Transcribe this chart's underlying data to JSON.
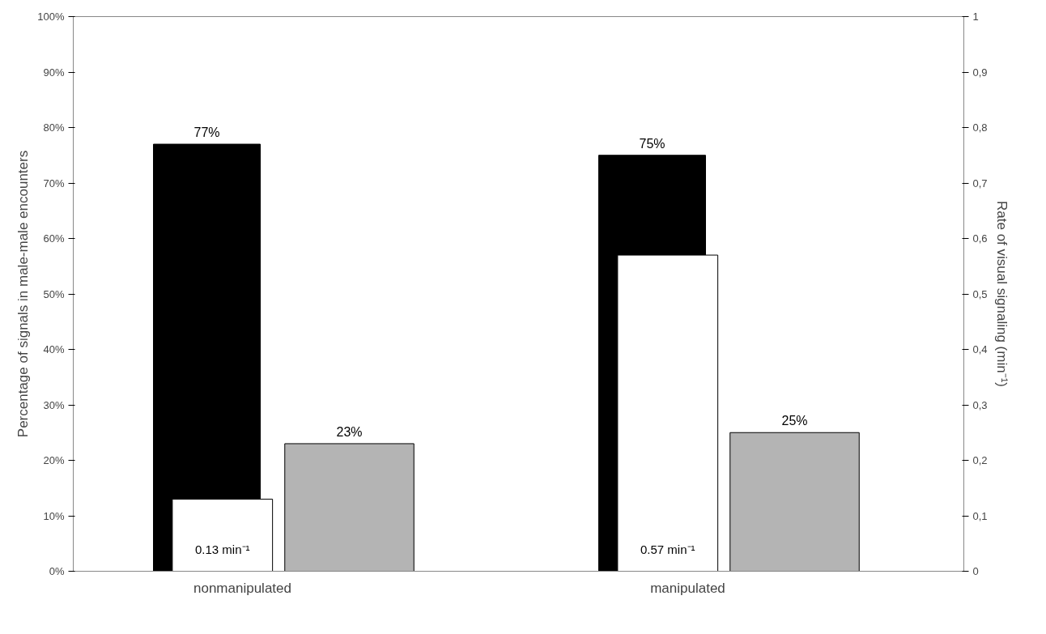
{
  "chart_data": {
    "type": "bar",
    "categories": [
      "nonmanipulated",
      "manipulated"
    ],
    "ylabel": "Percentage of signals in male-male encounters",
    "y2label": "Rate of visual signaling (min⁻¹)",
    "series": [
      {
        "color": "#000000",
        "values": [
          77,
          75
        ],
        "value_labels": [
          "77%",
          "75%"
        ]
      },
      {
        "color": "#ffffff",
        "values": [
          0.13,
          0.57
        ],
        "axis": "y2",
        "value_labels": [
          "0.13 min⁻¹",
          "0.57 min⁻¹"
        ]
      },
      {
        "color": "#b4b4b4",
        "values": [
          23,
          25
        ],
        "value_labels": [
          "23%",
          "25%"
        ]
      }
    ],
    "ylim": [
      0,
      100
    ],
    "yticks": [
      {
        "value": 0,
        "label": "0%"
      },
      {
        "value": 10,
        "label": "10%"
      },
      {
        "value": 20,
        "label": "20%"
      },
      {
        "value": 30,
        "label": "30%"
      },
      {
        "value": 40,
        "label": "40%"
      },
      {
        "value": 50,
        "label": "50%"
      },
      {
        "value": 60,
        "label": "60%"
      },
      {
        "value": 70,
        "label": "70%"
      },
      {
        "value": 80,
        "label": "80%"
      },
      {
        "value": 90,
        "label": "90%"
      },
      {
        "value": 100,
        "label": "100%"
      }
    ],
    "y2lim": [
      0,
      1
    ],
    "y2ticks": [
      0,
      {
        "value": 0.1,
        "label": "0,1"
      },
      {
        "value": 0.2,
        "label": "0,2"
      },
      {
        "value": 0.3,
        "label": "0,3"
      },
      {
        "value": 0.4,
        "label": "0,4"
      },
      {
        "value": 0.5,
        "label": "0,5"
      },
      {
        "value": 0.6,
        "label": "0,6"
      },
      {
        "value": 0.7,
        "label": "0,7"
      },
      {
        "value": 0.8,
        "label": "0,8"
      },
      {
        "value": 0.9,
        "label": "0,9"
      },
      1
    ],
    "grid": false
  }
}
